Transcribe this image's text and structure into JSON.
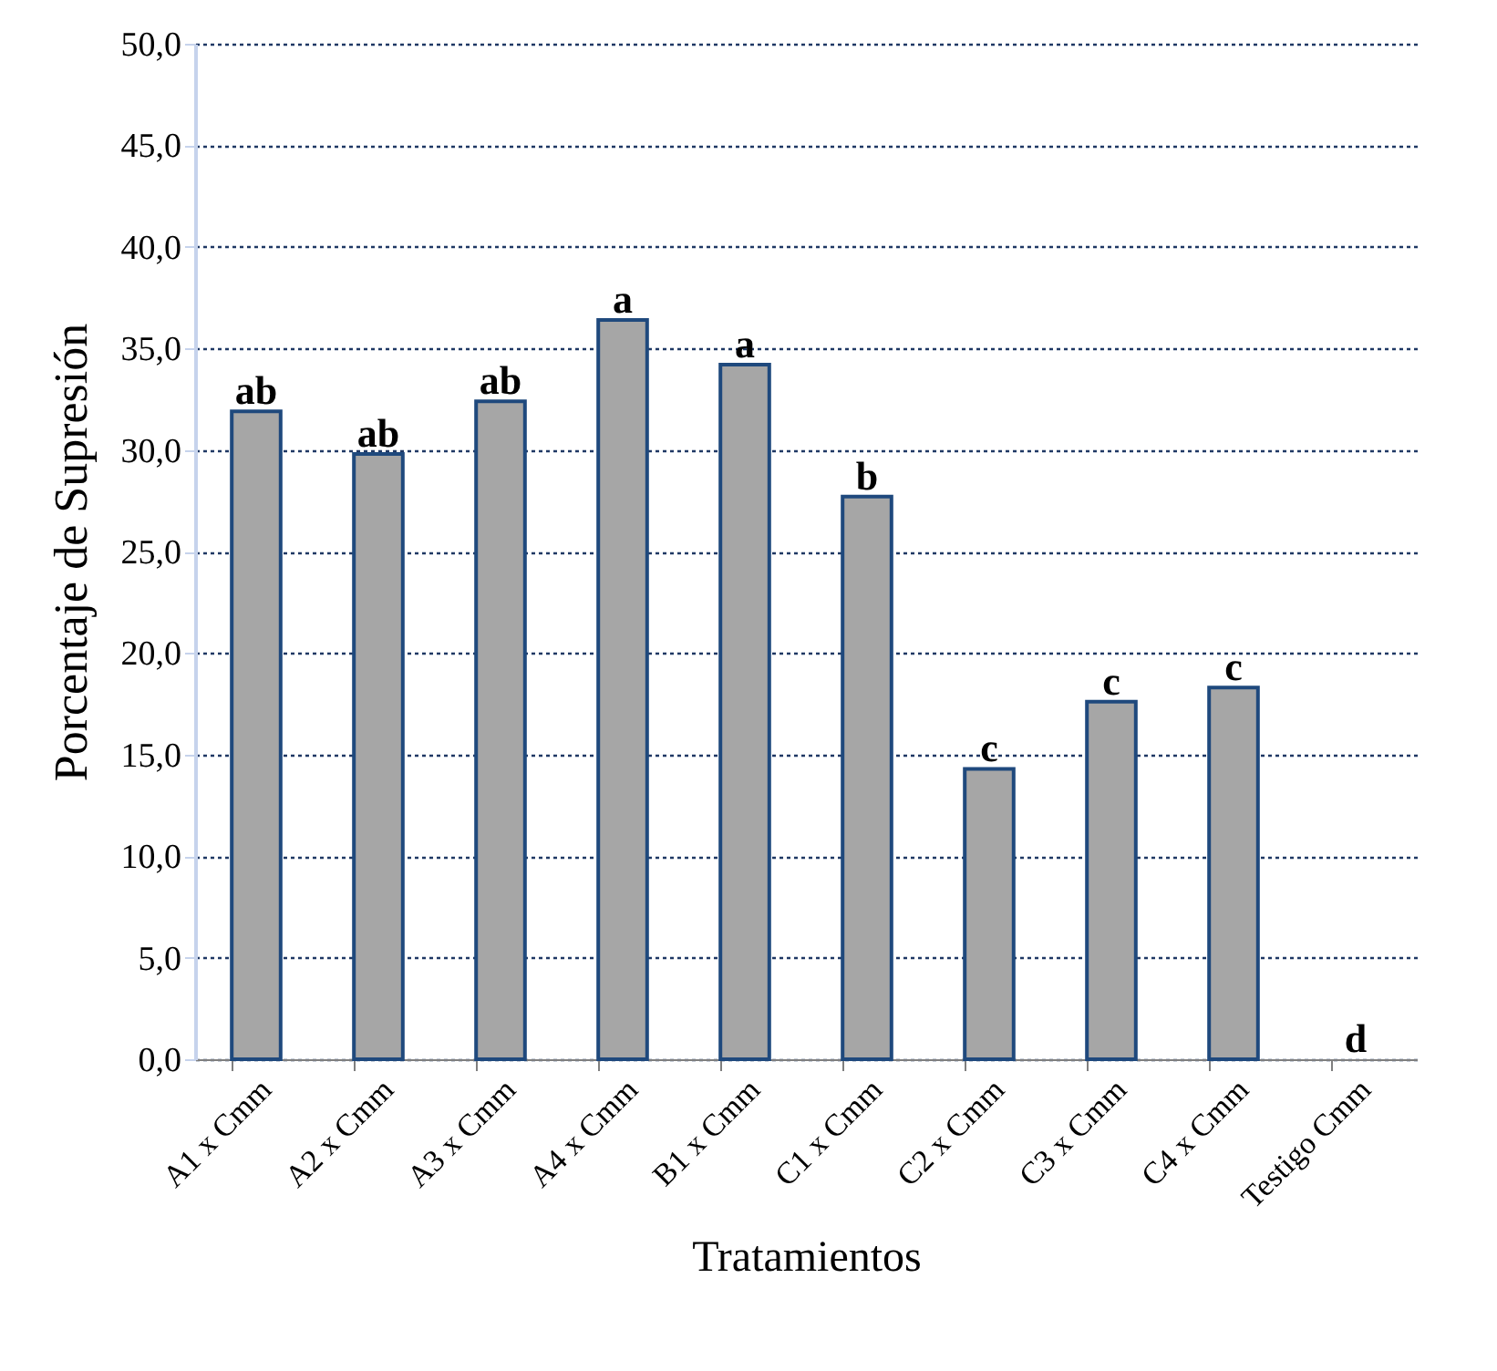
{
  "chart_data": {
    "type": "bar",
    "xlabel": "Tratamientos",
    "ylabel": "Porcentaje de Supresión",
    "categories": [
      "A1 x Cmm",
      "A2 x Cmm",
      "A3 x Cmm",
      "A4 x Cmm",
      "B1 x Cmm",
      "C1 x Cmm",
      "C2 x Cmm",
      "C3 x Cmm",
      "C4 x Cmm",
      "Testigo Cmm"
    ],
    "series": [
      {
        "color": "#a6a6a6",
        "values": [
          31.9,
          29.8,
          32.4,
          36.4,
          34.2,
          27.7,
          14.3,
          17.6,
          18.3,
          0
        ]
      }
    ],
    "ylim": [
      0,
      50
    ],
    "yticks": [
      {
        "value": 0,
        "label": "0,0"
      },
      {
        "value": 5,
        "label": "5,0"
      },
      {
        "value": 10,
        "label": "10,0"
      },
      {
        "value": 15,
        "label": "15,0"
      },
      {
        "value": 20,
        "label": "20,0"
      },
      {
        "value": 25,
        "label": "25,0"
      },
      {
        "value": 30,
        "label": "30,0"
      },
      {
        "value": 35,
        "label": "35,0"
      },
      {
        "value": 40,
        "label": "40,0"
      },
      {
        "value": 45,
        "label": "45,0"
      },
      {
        "value": 50,
        "label": "50,0"
      }
    ],
    "grid": "y",
    "line_style": "dotted",
    "annotations": [
      {
        "text": "ab",
        "x": "A1 x Cmm",
        "y": 31.9
      },
      {
        "text": "ab",
        "x": "A2 x Cmm",
        "y": 29.8
      },
      {
        "text": "ab",
        "x": "A3 x Cmm",
        "y": 32.4
      },
      {
        "text": "a",
        "x": "A4 x Cmm",
        "y": 36.4
      },
      {
        "text": "a",
        "x": "B1 x Cmm",
        "y": 34.2
      },
      {
        "text": "b",
        "x": "C1 x Cmm",
        "y": 27.7
      },
      {
        "text": "c",
        "x": "C2 x Cmm",
        "y": 14.3
      },
      {
        "text": "c",
        "x": "C3 x Cmm",
        "y": 17.6
      },
      {
        "text": "c",
        "x": "C4 x Cmm",
        "y": 18.3
      },
      {
        "text": "d",
        "x": "Testigo Cmm",
        "y": 0
      }
    ]
  }
}
